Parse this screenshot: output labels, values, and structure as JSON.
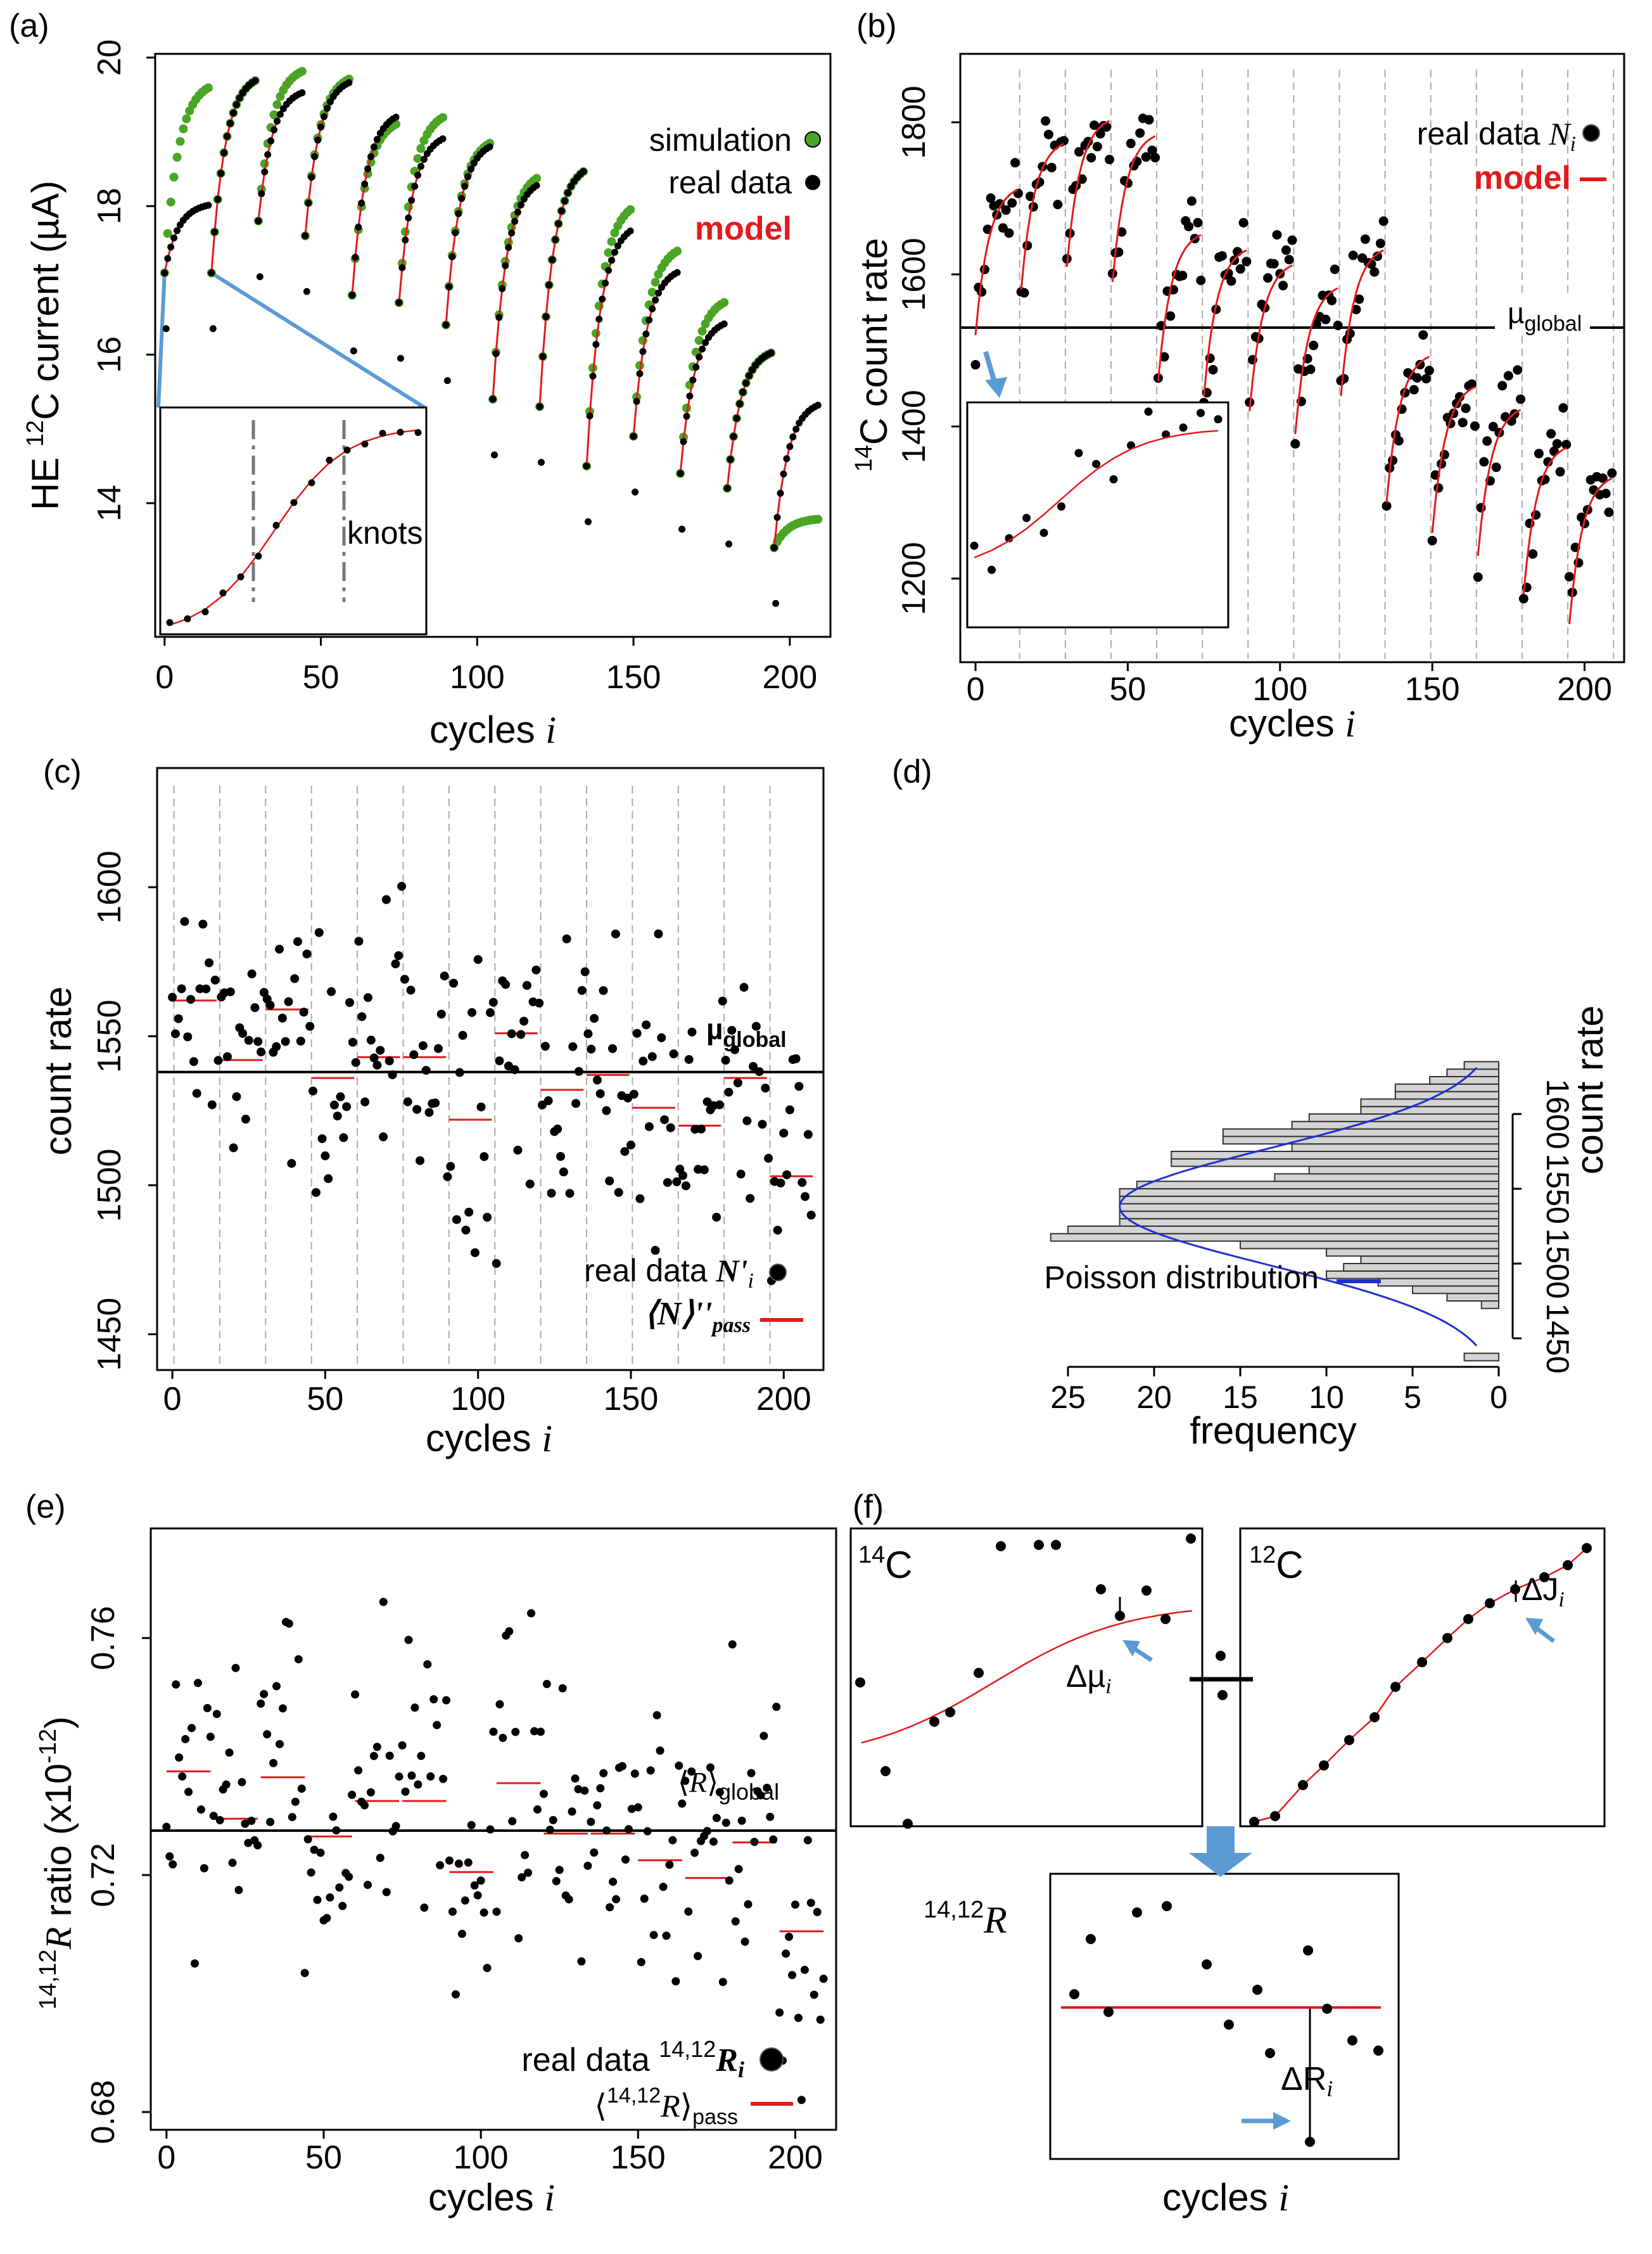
{
  "chart_data": [
    {
      "panel": "(a)",
      "type": "scatter",
      "xlabel": "cycles i",
      "ylabel": "HE 12C current (µA)",
      "xlim": [
        -3,
        213
      ],
      "ylim": [
        12.2,
        20.05
      ],
      "xticks": [
        "0",
        "50",
        "100",
        "150",
        "200"
      ],
      "yticks": [
        "14",
        "16",
        "18",
        "20"
      ],
      "legend": [
        "simulation",
        "real data",
        "model"
      ],
      "inset_label": "knots",
      "passes": [
        {
          "start": 0,
          "real_start": 17.1,
          "real_end": 18.05,
          "sim_end": 19.7
        },
        {
          "start": 15,
          "real_start": 17.1,
          "real_end": 19.8,
          "sim_end": 19.8
        },
        {
          "start": 30,
          "real_start": 17.8,
          "real_end": 19.6,
          "sim_end": 19.9
        },
        {
          "start": 45,
          "real_start": 17.6,
          "real_end": 19.75,
          "sim_end": 19.8
        },
        {
          "start": 60,
          "real_start": 16.8,
          "real_end": 19.3,
          "sim_end": 19.2
        },
        {
          "start": 75,
          "real_start": 16.7,
          "real_end": 19.0,
          "sim_end": 19.3
        },
        {
          "start": 90,
          "real_start": 16.4,
          "real_end": 18.9,
          "sim_end": 18.95
        },
        {
          "start": 105,
          "real_start": 15.4,
          "real_end": 18.4,
          "sim_end": 18.5
        },
        {
          "start": 120,
          "real_start": 15.3,
          "real_end": 18.6,
          "sim_end": 18.6
        },
        {
          "start": 135,
          "real_start": 14.5,
          "real_end": 17.8,
          "sim_end": 18.1
        },
        {
          "start": 150,
          "real_start": 14.9,
          "real_end": 17.2,
          "sim_end": 17.5
        },
        {
          "start": 165,
          "real_start": 14.4,
          "real_end": 16.5,
          "sim_end": 16.8
        },
        {
          "start": 180,
          "real_start": 14.2,
          "real_end": 16.1,
          "sim_end": 16.1
        },
        {
          "start": 195,
          "real_start": 13.4,
          "real_end": 15.4,
          "sim_end": 13.8
        }
      ]
    },
    {
      "panel": "(b)",
      "type": "scatter",
      "xlabel": "cycles i",
      "ylabel": "14C count rate",
      "xlim": [
        -5,
        213
      ],
      "ylim": [
        1090,
        1890
      ],
      "xticks": [
        "0",
        "50",
        "100",
        "150",
        "200"
      ],
      "yticks": [
        "1200",
        "1400",
        "1600",
        "1800"
      ],
      "legend": [
        "real data Ni",
        "model"
      ],
      "mu_global": 1530,
      "mu_label": "µglobal",
      "pass_means": [
        1680,
        1740,
        1770,
        1750,
        1620,
        1600,
        1580,
        1550,
        1600,
        1460,
        1420,
        1390,
        1340,
        1300
      ]
    },
    {
      "panel": "(c)",
      "type": "scatter",
      "xlabel": "cycles i",
      "ylabel": "count rate",
      "xlim": [
        -5,
        213
      ],
      "ylim": [
        1438,
        1640
      ],
      "xticks": [
        "0",
        "50",
        "100",
        "150",
        "200"
      ],
      "yticks": [
        "1450",
        "1500",
        "1550",
        "1600"
      ],
      "legend": [
        "real data N'i",
        "⟨N⟩''pass"
      ],
      "mu_global": 1538,
      "mu_label": "µglobal",
      "pass_means": [
        1562,
        1542,
        1559,
        1536,
        1543,
        1543,
        1522,
        1551,
        1532,
        1537,
        1526,
        1520,
        1536,
        1503
      ]
    },
    {
      "panel": "(d)",
      "type": "bar",
      "orientation": "horizontal",
      "xlabel": "frequency",
      "ylabel": "count rate",
      "xticks": [
        "25",
        "20",
        "15",
        "10",
        "5",
        "0"
      ],
      "yticks": [
        "1450",
        "1500",
        "1550",
        "1600"
      ],
      "legend": [
        "Poisson distribution"
      ],
      "bin_lows": [
        1435,
        1440,
        1445,
        1450,
        1455,
        1460,
        1465,
        1470,
        1475,
        1480,
        1485,
        1490,
        1495,
        1500,
        1505,
        1510,
        1515,
        1520,
        1525,
        1530,
        1535,
        1540,
        1545,
        1550,
        1555,
        1560,
        1565,
        1570,
        1575,
        1580,
        1585,
        1590,
        1595,
        1600,
        1605,
        1610,
        1615,
        1620,
        1625,
        1630
      ],
      "counts": [
        2,
        0,
        0,
        0,
        0,
        0,
        0,
        1,
        3,
        5,
        7,
        10,
        9,
        8,
        10,
        15,
        26,
        25,
        22,
        22,
        22,
        22,
        22,
        21,
        13,
        11,
        19,
        19,
        12,
        16,
        16,
        12,
        11,
        8,
        8,
        6,
        6,
        4,
        3,
        2
      ]
    },
    {
      "panel": "(e)",
      "type": "scatter",
      "xlabel": "cycles i",
      "ylabel": "14,12R ratio (x10-12)",
      "xlim": [
        -5,
        213
      ],
      "ylim": [
        0.677,
        0.7785
      ],
      "xticks": [
        "0",
        "50",
        "100",
        "150",
        "200"
      ],
      "yticks": [
        "0.68",
        "0.72",
        "0.76"
      ],
      "legend": [
        "real data 14,12Ri",
        "⟨14,12R⟩pass"
      ],
      "R_global": 0.7275,
      "R_label": "⟨R⟩global",
      "pass_means": [
        0.7375,
        0.7295,
        0.7365,
        0.7265,
        0.7325,
        0.7325,
        0.7205,
        0.7355,
        0.727,
        0.727,
        0.7225,
        0.7195,
        0.7255,
        0.7105
      ]
    },
    {
      "panel": "(f)",
      "type": "scatter",
      "xlabel": "cycles i",
      "sub_labels": [
        "14C",
        "12C",
        "14,12R"
      ],
      "annotations": [
        "Δµi",
        "ΔJi",
        "ΔRi"
      ]
    }
  ],
  "labels": {
    "a": "(a)",
    "b": "(b)",
    "c": "(c)",
    "d": "(d)",
    "e": "(e)",
    "f": "(f)",
    "cycles": "cycles",
    "i": "i",
    "a_ylabel_pre": "HE ",
    "a_ylabel_sup": "12",
    "a_ylabel_post": "C current (µA)",
    "b_ylabel_sup": "14",
    "b_ylabel_post": "C count rate",
    "count_rate": "count rate",
    "frequency": "frequency",
    "e_ylabel_sup1": "14,12",
    "e_ylabel_R": "R",
    "e_ylabel_mid": " ratio (x10",
    "e_ylabel_sup2": "-12",
    "e_ylabel_end": ")",
    "simulation": "simulation",
    "real_data": "real data",
    "model": "model",
    "knots": "knots",
    "N": "N",
    "Nprime": "N'",
    "Nangle": "⟨N⟩''",
    "pass": "pass",
    "mu": "µ",
    "global": "global",
    "poisson": "Poisson distribution",
    "R": "R",
    "f_14": "14",
    "f_12": "12",
    "f_1412": "14,12",
    "C": "C",
    "dmu": "Δµ",
    "dJ": "ΔJ",
    "dR": "ΔR",
    "langle": "⟨",
    "rangle": "⟩",
    "e_leg_sup": "14,12"
  },
  "colors": {
    "real": "#000000",
    "simulation": "#4aa524",
    "model": "#e31a1c",
    "poisson": "#1f2fd6",
    "arrow": "#5b9bd5",
    "bars": "#d4d4d4",
    "grid": "#aaaaaa"
  }
}
